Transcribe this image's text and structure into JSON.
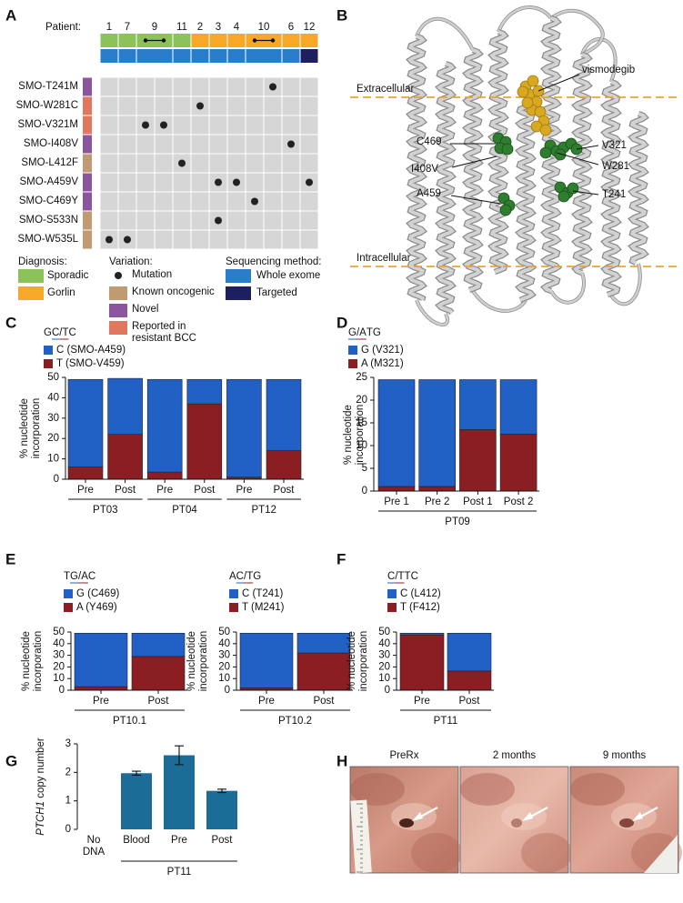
{
  "panel_labels": [
    "A",
    "B",
    "C",
    "D",
    "E",
    "F",
    "G",
    "H"
  ],
  "panel_a": {
    "patient_label": "Patient:",
    "patients": [
      {
        "label": "1",
        "columns": [
          0
        ],
        "diagnosis": 0,
        "sequencing": 0
      },
      {
        "label": "7",
        "columns": [
          1
        ],
        "diagnosis": 0,
        "sequencing": 0
      },
      {
        "label": "9",
        "columns": [
          2,
          3
        ],
        "diagnosis": 0,
        "sequencing": 0
      },
      {
        "label": "11",
        "columns": [
          4
        ],
        "diagnosis": 0,
        "sequencing": 0
      },
      {
        "label": "2",
        "columns": [
          5
        ],
        "diagnosis": 1,
        "sequencing": 0
      },
      {
        "label": "3",
        "columns": [
          6
        ],
        "diagnosis": 1,
        "sequencing": 0
      },
      {
        "label": "4",
        "columns": [
          7
        ],
        "diagnosis": 1,
        "sequencing": 0
      },
      {
        "label": "10",
        "columns": [
          8,
          9
        ],
        "diagnosis": 1,
        "sequencing": 0
      },
      {
        "label": "6",
        "columns": [
          10
        ],
        "diagnosis": 1,
        "sequencing": 0
      },
      {
        "label": "12",
        "columns": [
          11
        ],
        "diagnosis": 1,
        "sequencing": 1
      }
    ],
    "mutations": [
      {
        "label": "SMO-T241M",
        "variation": 2,
        "columns": [
          9
        ]
      },
      {
        "label": "SMO-W281C",
        "variation": 3,
        "columns": [
          5
        ]
      },
      {
        "label": "SMO-V321M",
        "variation": 3,
        "columns": [
          2,
          3
        ]
      },
      {
        "label": "SMO-I408V",
        "variation": 2,
        "columns": [
          10
        ]
      },
      {
        "label": "SMO-L412F",
        "variation": 1,
        "columns": [
          4
        ]
      },
      {
        "label": "SMO-A459V",
        "variation": 2,
        "columns": [
          6,
          7,
          11
        ]
      },
      {
        "label": "SMO-C469Y",
        "variation": 2,
        "columns": [
          8
        ]
      },
      {
        "label": "SMO-S533N",
        "variation": 1,
        "columns": [
          6
        ]
      },
      {
        "label": "SMO-W535L",
        "variation": 1,
        "columns": [
          0,
          1
        ]
      }
    ],
    "diagnosis": {
      "title": "Diagnosis:",
      "items": [
        {
          "label": "Sporadic",
          "color": "#8bc25a"
        },
        {
          "label": "Gorlin",
          "color": "#f7a829"
        }
      ]
    },
    "variation": {
      "title": "Variation:",
      "items": [
        {
          "label": "Mutation",
          "color": "#222222"
        },
        {
          "label": "Known oncogenic",
          "color": "#c09a70"
        },
        {
          "label": "Novel",
          "color": "#8c55a0"
        },
        {
          "label": "Reported in resistant BCC",
          "color": "#e0775f"
        }
      ]
    },
    "sequencing": {
      "title": "Sequencing method:",
      "items": [
        {
          "label": "Whole exome",
          "color": "#2a7dc8"
        },
        {
          "label": "Targeted",
          "color": "#1d1f5f"
        }
      ]
    }
  },
  "panel_b": {
    "ligand": "vismodegib",
    "membrane_labels": [
      "Extracellular",
      "Intracellular"
    ],
    "residues": [
      "C469",
      "I408V",
      "A459",
      "V321",
      "W281",
      "T241"
    ]
  },
  "panel_h": {
    "timepoints": [
      "PreRx",
      "2 months",
      "9 months"
    ]
  },
  "chart_data": [
    {
      "type": "bar",
      "stacked": true,
      "title": [
        {
          "text": "G"
        },
        {
          "text": "C",
          "color": "#2160c4",
          "underline": true
        },
        {
          "text": "/",
          "color": "#8b1e22",
          "underline": true
        },
        {
          "text": "T",
          "color": "#8b1e22",
          "underline": true
        },
        {
          "text": "C"
        }
      ],
      "ylabel": "% nucleotide incorporation",
      "categories": [
        "Pre",
        "Post",
        "Pre",
        "Post",
        "Pre",
        "Post"
      ],
      "groups": [
        {
          "label": "PT03",
          "start": 0,
          "end": 1
        },
        {
          "label": "PT04",
          "start": 2,
          "end": 3
        },
        {
          "label": "PT12",
          "start": 4,
          "end": 5
        }
      ],
      "series": [
        {
          "name": "C (SMO-A459)",
          "color": "#2160c4",
          "values": [
            43,
            27.5,
            45.5,
            12,
            48,
            35
          ]
        },
        {
          "name": "T (SMO-V459)",
          "color": "#8b1e22",
          "values": [
            6,
            22,
            3.5,
            37,
            1,
            14
          ]
        }
      ],
      "ylim": [
        0,
        50
      ],
      "yticks": [
        0,
        10,
        20,
        30,
        40,
        50
      ]
    },
    {
      "type": "bar",
      "stacked": true,
      "title": [
        {
          "text": "G",
          "color": "#2160c4",
          "underline": true
        },
        {
          "text": "/",
          "color": "#8b1e22",
          "underline": true
        },
        {
          "text": "A",
          "color": "#8b1e22",
          "underline": true
        },
        {
          "text": "TG"
        }
      ],
      "ylabel": "% nucleotide incorporation",
      "categories": [
        "Pre 1",
        "Pre 2",
        "Post 1",
        "Post 2"
      ],
      "groups": [
        {
          "label": "PT09",
          "start": 0,
          "end": 3
        }
      ],
      "series": [
        {
          "name": "G (V321)",
          "color": "#2160c4",
          "values": [
            23.5,
            23.5,
            11,
            12
          ]
        },
        {
          "name": "A (M321)",
          "color": "#8b1e22",
          "values": [
            1,
            1,
            13.5,
            12.5
          ]
        }
      ],
      "ylim": [
        0,
        25
      ],
      "yticks": [
        0,
        5,
        10,
        15,
        20,
        25
      ]
    },
    {
      "type": "bar",
      "stacked": true,
      "title": [
        {
          "text": "T"
        },
        {
          "text": "G",
          "color": "#2160c4",
          "underline": true
        },
        {
          "text": "/",
          "color": "#8b1e22",
          "underline": true
        },
        {
          "text": "A",
          "color": "#8b1e22",
          "underline": true
        },
        {
          "text": "C"
        }
      ],
      "ylabel": "% nucleotide incorporation",
      "categories": [
        "Pre",
        "Post"
      ],
      "groups": [
        {
          "label": "PT10.1",
          "start": 0,
          "end": 1
        }
      ],
      "series": [
        {
          "name": "G (C469)",
          "color": "#2160c4",
          "values": [
            46,
            20
          ]
        },
        {
          "name": "A (Y469)",
          "color": "#8b1e22",
          "values": [
            3,
            29
          ]
        }
      ],
      "ylim": [
        0,
        50
      ],
      "yticks": [
        0,
        10,
        20,
        30,
        40,
        50
      ]
    },
    {
      "type": "bar",
      "stacked": true,
      "title": [
        {
          "text": "A"
        },
        {
          "text": "C",
          "color": "#2160c4",
          "underline": true
        },
        {
          "text": "/",
          "color": "#8b1e22",
          "underline": true
        },
        {
          "text": "T",
          "color": "#8b1e22",
          "underline": true
        },
        {
          "text": "G"
        }
      ],
      "ylabel": "% nucleotide incorporation",
      "categories": [
        "Pre",
        "Post"
      ],
      "groups": [
        {
          "label": "PT10.2",
          "start": 0,
          "end": 1
        }
      ],
      "series": [
        {
          "name": "C (T241)",
          "color": "#2160c4",
          "values": [
            47,
            17
          ]
        },
        {
          "name": "T (M241)",
          "color": "#8b1e22",
          "values": [
            2,
            32
          ]
        }
      ],
      "ylim": [
        0,
        50
      ],
      "yticks": [
        0,
        10,
        20,
        30,
        40,
        50
      ]
    },
    {
      "type": "bar",
      "stacked": true,
      "title": [
        {
          "text": "C",
          "color": "#2160c4",
          "underline": true
        },
        {
          "text": "/",
          "color": "#8b1e22",
          "underline": true
        },
        {
          "text": "T",
          "color": "#8b1e22",
          "underline": true
        },
        {
          "text": "TC"
        }
      ],
      "ylabel": "% nucleotide incorporation",
      "categories": [
        "Pre",
        "Post"
      ],
      "groups": [
        {
          "label": "PT11",
          "start": 0,
          "end": 1
        }
      ],
      "series": [
        {
          "name": "C (L412)",
          "color": "#2160c4",
          "values": [
            1.5,
            32.5
          ]
        },
        {
          "name": "T (F412)",
          "color": "#8b1e22",
          "values": [
            47.5,
            16.5
          ]
        }
      ],
      "ylim": [
        0,
        50
      ],
      "yticks": [
        0,
        10,
        20,
        30,
        40,
        50
      ]
    },
    {
      "type": "bar",
      "ylabel": [
        {
          "text": "PTCH1",
          "italic": true
        },
        {
          "text": " copy number"
        }
      ],
      "categories": [
        "No DNA",
        "Blood",
        "Pre",
        "Post"
      ],
      "groups": [
        {
          "label": "PT11",
          "start": 1,
          "end": 3
        }
      ],
      "values": [
        0,
        1.97,
        2.6,
        1.35
      ],
      "errors": [
        null,
        0.07,
        0.33,
        0.06
      ],
      "color": "#1b6c96",
      "ylim": [
        0,
        3
      ],
      "yticks": [
        0,
        1,
        2,
        3
      ]
    }
  ]
}
